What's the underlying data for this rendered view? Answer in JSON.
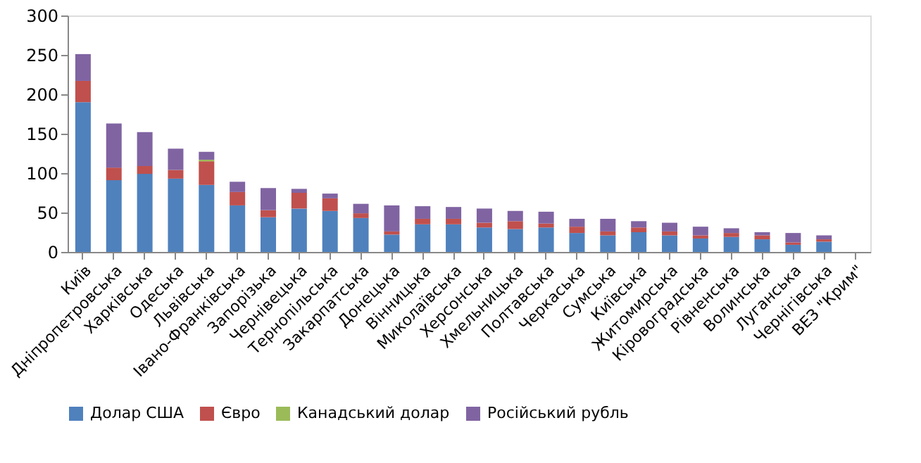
{
  "chart_data": {
    "type": "bar",
    "stacked": true,
    "categories": [
      "Київ",
      "Дніпропетровська",
      "Харківська",
      "Одеська",
      "Львівська",
      "Івано-Франківська",
      "Запорізька",
      "Чернівецька",
      "Тернопільська",
      "Закарпатська",
      "Донецька",
      "Вінницька",
      "Миколаївська",
      "Херсонська",
      "Хмельницька",
      "Полтавська",
      "Черкаська",
      "Сумська",
      "Київська",
      "Житомирська",
      "Кіровоградська",
      "Рівненська",
      "Волинська",
      "Луганська",
      "Чернігівська",
      "ВЕЗ \"Крим\""
    ],
    "series": [
      {
        "name": "Долар США",
        "color": "#4f81bd",
        "values": [
          190,
          91,
          99,
          93,
          85,
          59,
          44,
          55,
          52,
          43,
          22,
          35,
          35,
          31,
          29,
          31,
          24,
          21,
          25,
          21,
          17,
          19,
          16,
          9,
          13,
          0
        ]
      },
      {
        "name": "Євро",
        "color": "#c0504d",
        "values": [
          27,
          16,
          10,
          11,
          30,
          17,
          9,
          20,
          16,
          6,
          4,
          7,
          7,
          6,
          10,
          5,
          8,
          5,
          6,
          5,
          4,
          5,
          5,
          3,
          3,
          0
        ]
      },
      {
        "name": "Канадський долар",
        "color": "#9bbb59",
        "values": [
          0,
          0,
          0,
          0,
          2,
          0,
          0,
          0,
          0,
          0,
          0,
          0,
          0,
          0,
          0,
          0,
          0,
          0,
          0,
          0,
          0,
          0,
          0,
          0,
          0,
          0
        ]
      },
      {
        "name": "Російський рубль",
        "color": "#8064a2",
        "values": [
          34,
          56,
          43,
          27,
          10,
          13,
          28,
          5,
          6,
          12,
          33,
          16,
          15,
          18,
          13,
          15,
          10,
          16,
          8,
          11,
          11,
          6,
          4,
          12,
          5,
          0
        ]
      }
    ],
    "ylim": [
      0,
      300
    ],
    "yticks": [
      0,
      50,
      100,
      150,
      200,
      250,
      300
    ],
    "grid": false,
    "legend": "bottom"
  }
}
